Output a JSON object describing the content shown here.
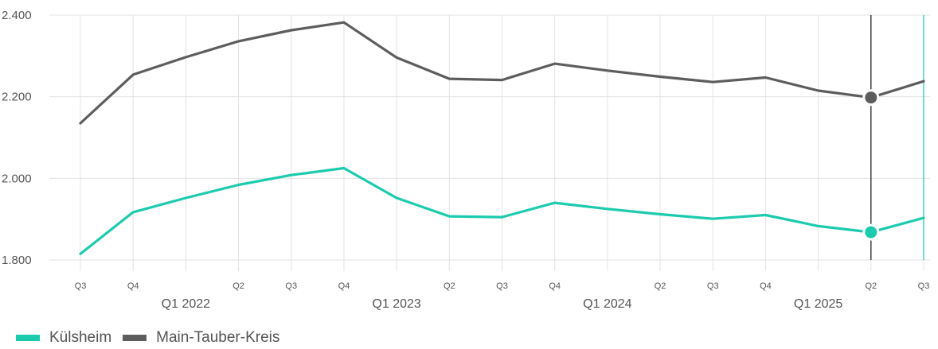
{
  "chart_data": {
    "type": "line",
    "x": [
      "Q3",
      "Q4",
      "Q1 2022",
      "Q2",
      "Q3",
      "Q4",
      "Q1 2023",
      "Q2",
      "Q3",
      "Q4",
      "Q1 2024",
      "Q2",
      "Q3",
      "Q4",
      "Q1 2025",
      "Q2",
      "Q3"
    ],
    "x_tick_labels_small": [
      "Q3",
      "Q4",
      "",
      "Q2",
      "Q3",
      "Q4",
      "",
      "Q2",
      "Q3",
      "Q4",
      "",
      "Q2",
      "Q3",
      "Q4",
      "",
      "Q2",
      "Q3"
    ],
    "x_tick_labels_year": [
      "",
      "",
      "Q1 2022",
      "",
      "",
      "",
      "Q1 2023",
      "",
      "",
      "",
      "Q1 2024",
      "",
      "",
      "",
      "Q1 2025",
      "",
      ""
    ],
    "ylim": [
      1800,
      2400
    ],
    "y_ticks": [
      {
        "value": 1800,
        "label": "1.800"
      },
      {
        "value": 2000,
        "label": "2.000"
      },
      {
        "value": 2200,
        "label": "2.200"
      },
      {
        "value": 2400,
        "label": "2.400"
      }
    ],
    "grid": true,
    "legend_position": "bottom-left",
    "highlight_index": 15,
    "series": [
      {
        "name": "Külsheim",
        "color": "#1ccbae",
        "values": [
          1815,
          1917,
          1952,
          1984,
          2008,
          2025,
          1952,
          1907,
          1905,
          1940,
          1925,
          1912,
          1901,
          1910,
          1883,
          1868,
          1903
        ]
      },
      {
        "name": "Main-Tauber-Kreis",
        "color": "#5d5d5d",
        "values": [
          2135,
          2254,
          2297,
          2336,
          2363,
          2382,
          2296,
          2244,
          2241,
          2281,
          2264,
          2249,
          2236,
          2247,
          2215,
          2198,
          2238
        ]
      }
    ]
  }
}
